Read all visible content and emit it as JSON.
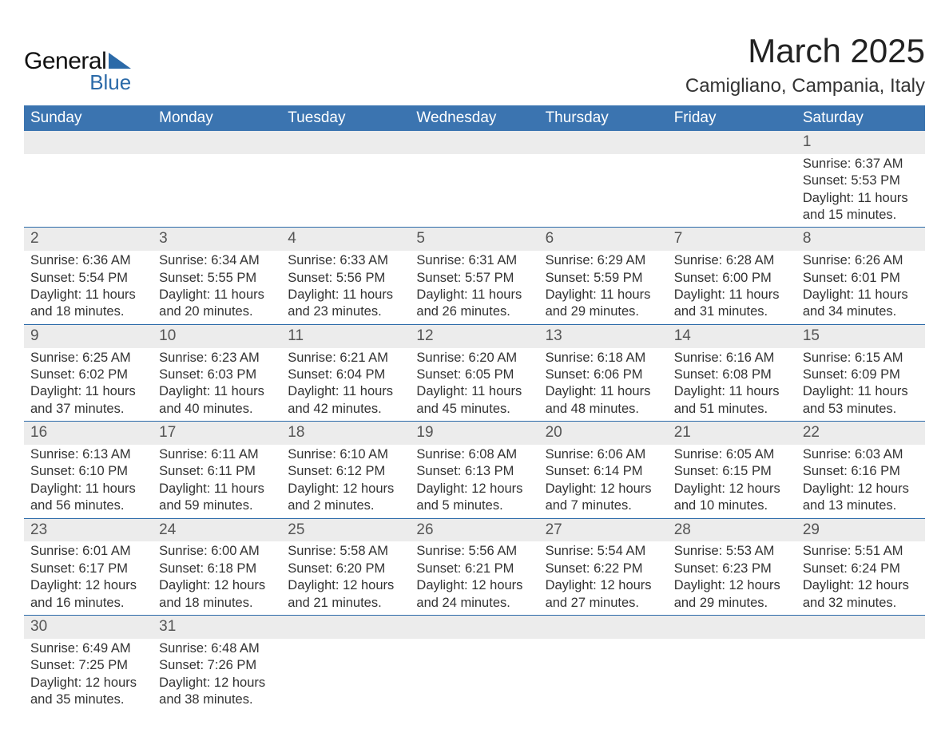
{
  "logo": {
    "text1": "General",
    "text2": "Blue",
    "tri_color": "#2b6aa8"
  },
  "title": "March 2025",
  "location": "Camigliano, Campania, Italy",
  "header_bg": "#3b74b0",
  "header_fg": "#ffffff",
  "daynum_bg": "#ececec",
  "border_color": "#2b6aa8",
  "weekdays": [
    "Sunday",
    "Monday",
    "Tuesday",
    "Wednesday",
    "Thursday",
    "Friday",
    "Saturday"
  ],
  "weeks": [
    [
      null,
      null,
      null,
      null,
      null,
      null,
      {
        "n": "1",
        "sr": "Sunrise: 6:37 AM",
        "ss": "Sunset: 5:53 PM",
        "dl": "Daylight: 11 hours and 15 minutes."
      }
    ],
    [
      {
        "n": "2",
        "sr": "Sunrise: 6:36 AM",
        "ss": "Sunset: 5:54 PM",
        "dl": "Daylight: 11 hours and 18 minutes."
      },
      {
        "n": "3",
        "sr": "Sunrise: 6:34 AM",
        "ss": "Sunset: 5:55 PM",
        "dl": "Daylight: 11 hours and 20 minutes."
      },
      {
        "n": "4",
        "sr": "Sunrise: 6:33 AM",
        "ss": "Sunset: 5:56 PM",
        "dl": "Daylight: 11 hours and 23 minutes."
      },
      {
        "n": "5",
        "sr": "Sunrise: 6:31 AM",
        "ss": "Sunset: 5:57 PM",
        "dl": "Daylight: 11 hours and 26 minutes."
      },
      {
        "n": "6",
        "sr": "Sunrise: 6:29 AM",
        "ss": "Sunset: 5:59 PM",
        "dl": "Daylight: 11 hours and 29 minutes."
      },
      {
        "n": "7",
        "sr": "Sunrise: 6:28 AM",
        "ss": "Sunset: 6:00 PM",
        "dl": "Daylight: 11 hours and 31 minutes."
      },
      {
        "n": "8",
        "sr": "Sunrise: 6:26 AM",
        "ss": "Sunset: 6:01 PM",
        "dl": "Daylight: 11 hours and 34 minutes."
      }
    ],
    [
      {
        "n": "9",
        "sr": "Sunrise: 6:25 AM",
        "ss": "Sunset: 6:02 PM",
        "dl": "Daylight: 11 hours and 37 minutes."
      },
      {
        "n": "10",
        "sr": "Sunrise: 6:23 AM",
        "ss": "Sunset: 6:03 PM",
        "dl": "Daylight: 11 hours and 40 minutes."
      },
      {
        "n": "11",
        "sr": "Sunrise: 6:21 AM",
        "ss": "Sunset: 6:04 PM",
        "dl": "Daylight: 11 hours and 42 minutes."
      },
      {
        "n": "12",
        "sr": "Sunrise: 6:20 AM",
        "ss": "Sunset: 6:05 PM",
        "dl": "Daylight: 11 hours and 45 minutes."
      },
      {
        "n": "13",
        "sr": "Sunrise: 6:18 AM",
        "ss": "Sunset: 6:06 PM",
        "dl": "Daylight: 11 hours and 48 minutes."
      },
      {
        "n": "14",
        "sr": "Sunrise: 6:16 AM",
        "ss": "Sunset: 6:08 PM",
        "dl": "Daylight: 11 hours and 51 minutes."
      },
      {
        "n": "15",
        "sr": "Sunrise: 6:15 AM",
        "ss": "Sunset: 6:09 PM",
        "dl": "Daylight: 11 hours and 53 minutes."
      }
    ],
    [
      {
        "n": "16",
        "sr": "Sunrise: 6:13 AM",
        "ss": "Sunset: 6:10 PM",
        "dl": "Daylight: 11 hours and 56 minutes."
      },
      {
        "n": "17",
        "sr": "Sunrise: 6:11 AM",
        "ss": "Sunset: 6:11 PM",
        "dl": "Daylight: 11 hours and 59 minutes."
      },
      {
        "n": "18",
        "sr": "Sunrise: 6:10 AM",
        "ss": "Sunset: 6:12 PM",
        "dl": "Daylight: 12 hours and 2 minutes."
      },
      {
        "n": "19",
        "sr": "Sunrise: 6:08 AM",
        "ss": "Sunset: 6:13 PM",
        "dl": "Daylight: 12 hours and 5 minutes."
      },
      {
        "n": "20",
        "sr": "Sunrise: 6:06 AM",
        "ss": "Sunset: 6:14 PM",
        "dl": "Daylight: 12 hours and 7 minutes."
      },
      {
        "n": "21",
        "sr": "Sunrise: 6:05 AM",
        "ss": "Sunset: 6:15 PM",
        "dl": "Daylight: 12 hours and 10 minutes."
      },
      {
        "n": "22",
        "sr": "Sunrise: 6:03 AM",
        "ss": "Sunset: 6:16 PM",
        "dl": "Daylight: 12 hours and 13 minutes."
      }
    ],
    [
      {
        "n": "23",
        "sr": "Sunrise: 6:01 AM",
        "ss": "Sunset: 6:17 PM",
        "dl": "Daylight: 12 hours and 16 minutes."
      },
      {
        "n": "24",
        "sr": "Sunrise: 6:00 AM",
        "ss": "Sunset: 6:18 PM",
        "dl": "Daylight: 12 hours and 18 minutes."
      },
      {
        "n": "25",
        "sr": "Sunrise: 5:58 AM",
        "ss": "Sunset: 6:20 PM",
        "dl": "Daylight: 12 hours and 21 minutes."
      },
      {
        "n": "26",
        "sr": "Sunrise: 5:56 AM",
        "ss": "Sunset: 6:21 PM",
        "dl": "Daylight: 12 hours and 24 minutes."
      },
      {
        "n": "27",
        "sr": "Sunrise: 5:54 AM",
        "ss": "Sunset: 6:22 PM",
        "dl": "Daylight: 12 hours and 27 minutes."
      },
      {
        "n": "28",
        "sr": "Sunrise: 5:53 AM",
        "ss": "Sunset: 6:23 PM",
        "dl": "Daylight: 12 hours and 29 minutes."
      },
      {
        "n": "29",
        "sr": "Sunrise: 5:51 AM",
        "ss": "Sunset: 6:24 PM",
        "dl": "Daylight: 12 hours and 32 minutes."
      }
    ],
    [
      {
        "n": "30",
        "sr": "Sunrise: 6:49 AM",
        "ss": "Sunset: 7:25 PM",
        "dl": "Daylight: 12 hours and 35 minutes."
      },
      {
        "n": "31",
        "sr": "Sunrise: 6:48 AM",
        "ss": "Sunset: 7:26 PM",
        "dl": "Daylight: 12 hours and 38 minutes."
      },
      null,
      null,
      null,
      null,
      null
    ]
  ]
}
